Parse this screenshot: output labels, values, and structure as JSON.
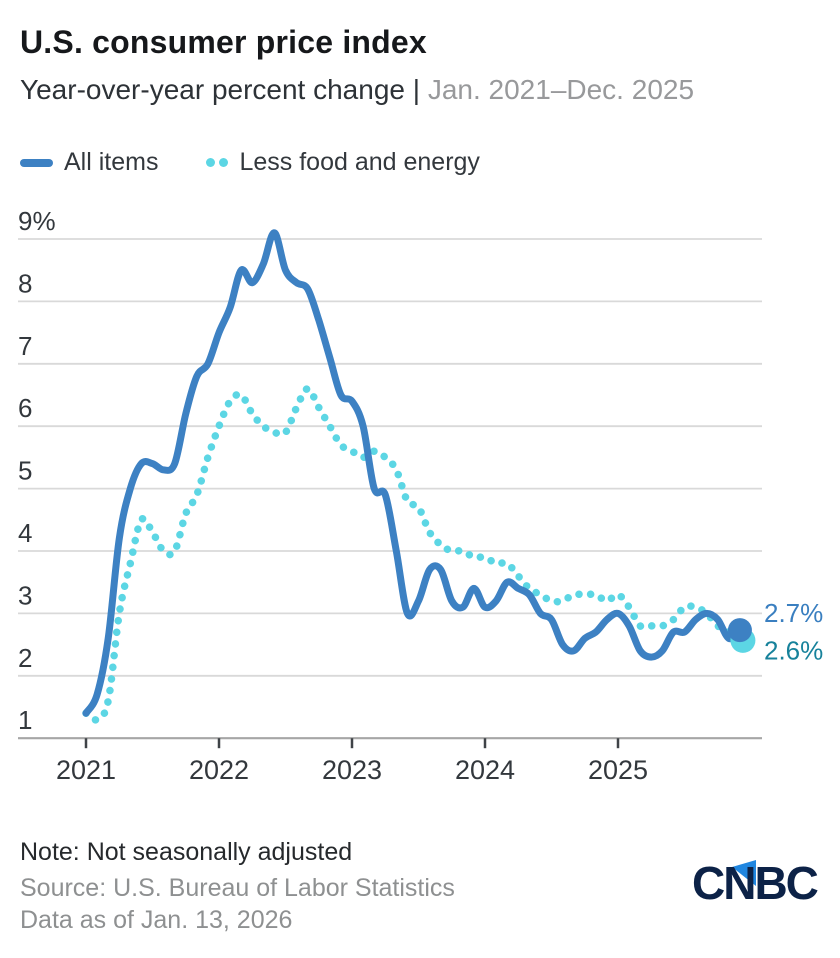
{
  "header": {
    "title": "U.S. consumer price index",
    "subtitle_left": "Year-over-year percent change",
    "subtitle_separator": " | ",
    "subtitle_right": "Jan. 2021–Dec. 2025"
  },
  "legend": {
    "all_items_label": "All items",
    "core_label": "Less food and energy"
  },
  "colors": {
    "all_items": "#3d81c3",
    "core": "#5cd6e4",
    "all_items_end_label": "#3a7fc0",
    "core_end_label": "#17829b",
    "gridline": "#d9d9d9",
    "axis_line": "#a6a6a6",
    "tick": "#3f4347",
    "axis_text": "#33383d"
  },
  "chart_data": {
    "type": "line",
    "title": "U.S. consumer price index",
    "xlabel": "",
    "ylabel": "Year-over-year percent change (%)",
    "x_start": "Jan. 2021",
    "x_end": "Dec. 2025",
    "x_tick_labels": [
      "2021",
      "2022",
      "2023",
      "2024",
      "2025"
    ],
    "y_ticks": [
      1,
      2,
      3,
      4,
      5,
      6,
      7,
      8,
      9
    ],
    "y_top_tick_label": "9%",
    "ylim": [
      1,
      9.3
    ],
    "grid": "horizontal",
    "legend_position": "top-left",
    "months_per_point": 1,
    "series": [
      {
        "name": "Less food and energy",
        "style": "dotted",
        "color": "#5cd6e4",
        "values": [
          1.4,
          1.3,
          1.6,
          3.0,
          3.8,
          4.5,
          4.3,
          4.0,
          4.0,
          4.6,
          4.9,
          5.5,
          6.0,
          6.4,
          6.5,
          6.2,
          6.0,
          5.9,
          5.9,
          6.3,
          6.6,
          6.3,
          6.0,
          5.7,
          5.6,
          5.5,
          5.6,
          5.5,
          5.3,
          4.8,
          4.7,
          4.3,
          4.1,
          4.0,
          4.0,
          3.9,
          3.9,
          3.8,
          3.8,
          3.6,
          3.4,
          3.3,
          3.2,
          3.2,
          3.3,
          3.3,
          3.3,
          3.2,
          3.3,
          3.1,
          2.8,
          2.8,
          2.8,
          2.9,
          3.1,
          3.1,
          3.0,
          2.8,
          2.7,
          2.6
        ]
      },
      {
        "name": "All items",
        "style": "solid",
        "color": "#3d81c3",
        "values": [
          1.4,
          1.7,
          2.6,
          4.2,
          5.0,
          5.4,
          5.4,
          5.3,
          5.4,
          6.2,
          6.8,
          7.0,
          7.5,
          7.9,
          8.5,
          8.3,
          8.6,
          9.1,
          8.5,
          8.3,
          8.2,
          7.7,
          7.1,
          6.5,
          6.4,
          6.0,
          5.0,
          4.9,
          4.0,
          3.0,
          3.2,
          3.7,
          3.7,
          3.2,
          3.1,
          3.4,
          3.1,
          3.2,
          3.5,
          3.4,
          3.3,
          3.0,
          2.9,
          2.5,
          2.4,
          2.6,
          2.7,
          2.9,
          3.0,
          2.8,
          2.4,
          2.3,
          2.4,
          2.7,
          2.7,
          2.9,
          3.0,
          2.9,
          2.6,
          2.7
        ]
      }
    ],
    "end_markers": [
      {
        "series": "All items",
        "value": 2.7,
        "label": "2.7%",
        "dot_color": "#3d81c3",
        "label_color": "#3a7fc0"
      },
      {
        "series": "Less food and energy",
        "value": 2.6,
        "label": "2.6%",
        "dot_color": "#5cd6e4",
        "label_color": "#17829b"
      }
    ]
  },
  "footer": {
    "note": "Note: Not seasonally adjusted",
    "source": "Source: U.S. Bureau of Labor Statistics",
    "as_of": "Data as of Jan. 13, 2026",
    "logo_text": "CNBC"
  }
}
